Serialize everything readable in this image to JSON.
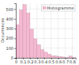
{
  "chart_data": {
    "type": "histogram",
    "ylabel": "Occurrences",
    "bins": [
      0.0,
      0.05,
      0.1,
      0.15,
      0.2,
      0.25,
      0.3,
      0.35,
      0.4,
      0.45,
      0.5,
      0.55,
      0.6,
      0.65,
      0.7,
      0.75,
      0.8,
      0.85
    ],
    "series": [
      {
        "name": "Histogramme",
        "color": "#f4b8d0",
        "values": [
          340,
          490,
          545,
          460,
          295,
          195,
          135,
          85,
          58,
          38,
          22,
          18,
          13,
          9,
          4,
          18,
          4
        ]
      }
    ],
    "xlim": [
      0.0,
      0.85
    ],
    "xticks": [
      0,
      0.1,
      0.2,
      0.3,
      0.4,
      0.5,
      0.6,
      0.7,
      0.8
    ],
    "ylim": [
      0,
      560
    ],
    "yticks": [
      0,
      100,
      200,
      300,
      400,
      500
    ],
    "grid": true,
    "legend": "upper right"
  }
}
